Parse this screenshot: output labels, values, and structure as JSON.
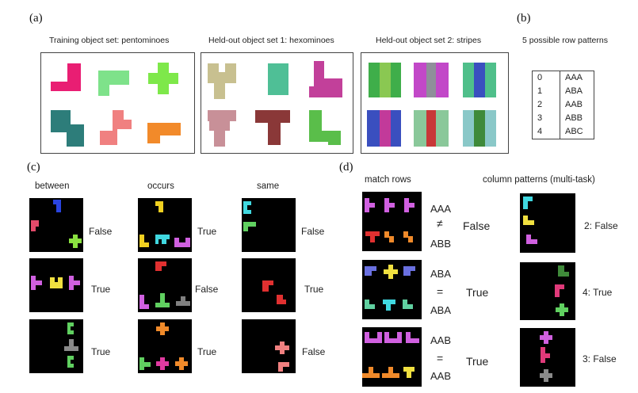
{
  "panel_a": {
    "label": "(a)",
    "sets": [
      {
        "title": "Training object set: pentominoes"
      },
      {
        "title": "Held-out object set 1: hexominoes"
      },
      {
        "title": "Held-out object set 2: stripes"
      }
    ]
  },
  "panel_b": {
    "label": "(b)",
    "title": "5 possible row patterns",
    "rows": [
      {
        "index": "0",
        "pattern": "AAA"
      },
      {
        "index": "1",
        "pattern": "ABA"
      },
      {
        "index": "2",
        "pattern": "AAB"
      },
      {
        "index": "3",
        "pattern": "ABB"
      },
      {
        "index": "4",
        "pattern": "ABC"
      }
    ]
  },
  "panel_c": {
    "label": "(c)",
    "tasks": [
      {
        "title": "between",
        "answers": [
          "False",
          "True",
          "True"
        ]
      },
      {
        "title": "occurs",
        "answers": [
          "True",
          "False",
          "True"
        ]
      },
      {
        "title": "same",
        "answers": [
          "False",
          "True",
          "False"
        ]
      }
    ]
  },
  "panel_d": {
    "label": "(d)",
    "match_title": "match rows",
    "column_title": "column patterns (multi-task)",
    "match_examples": [
      {
        "top": "AAA",
        "symbol": "≠",
        "bottom": "ABB",
        "answer": "False"
      },
      {
        "top": "ABA",
        "symbol": "=",
        "bottom": "ABA",
        "answer": "True"
      },
      {
        "top": "AAB",
        "symbol": "=",
        "bottom": "AAB",
        "answer": "True"
      }
    ],
    "column_answers": [
      "2: False",
      "4: True",
      "3: False"
    ]
  },
  "colors": {
    "panel_background": "#000000",
    "frame_border": "#444444"
  }
}
